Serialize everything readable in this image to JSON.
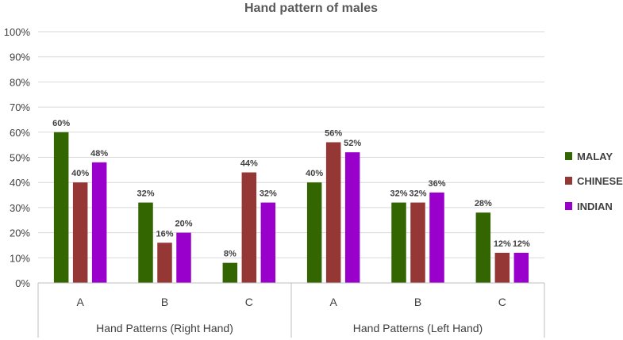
{
  "chart_data": {
    "type": "bar",
    "title": "Hand pattern of males",
    "ylim": [
      0,
      100
    ],
    "y_ticks": [
      "0%",
      "10%",
      "20%",
      "30%",
      "40%",
      "50%",
      "60%",
      "70%",
      "80%",
      "90%",
      "100%"
    ],
    "groups": [
      {
        "label": "Hand Patterns (Right Hand)",
        "categories": [
          "A",
          "B",
          "C"
        ]
      },
      {
        "label": "Hand Patterns (Left Hand)",
        "categories": [
          "A",
          "B",
          "C"
        ]
      }
    ],
    "series": [
      {
        "name": "MALAY",
        "color": "#336600",
        "values": [
          60,
          32,
          8,
          40,
          32,
          28
        ],
        "labels": [
          "60%",
          "32%",
          "8%",
          "40%",
          "32%",
          "28%"
        ]
      },
      {
        "name": "CHINESE",
        "color": "#953735",
        "values": [
          40,
          16,
          44,
          56,
          32,
          12
        ],
        "labels": [
          "40%",
          "16%",
          "44%",
          "56%",
          "32%",
          "12%"
        ]
      },
      {
        "name": "INDIAN",
        "color": "#9900CC",
        "values": [
          48,
          20,
          32,
          52,
          36,
          12
        ],
        "labels": [
          "48%",
          "20%",
          "32%",
          "52%",
          "36%",
          "12%"
        ]
      }
    ],
    "grid": true,
    "legend": "right"
  }
}
